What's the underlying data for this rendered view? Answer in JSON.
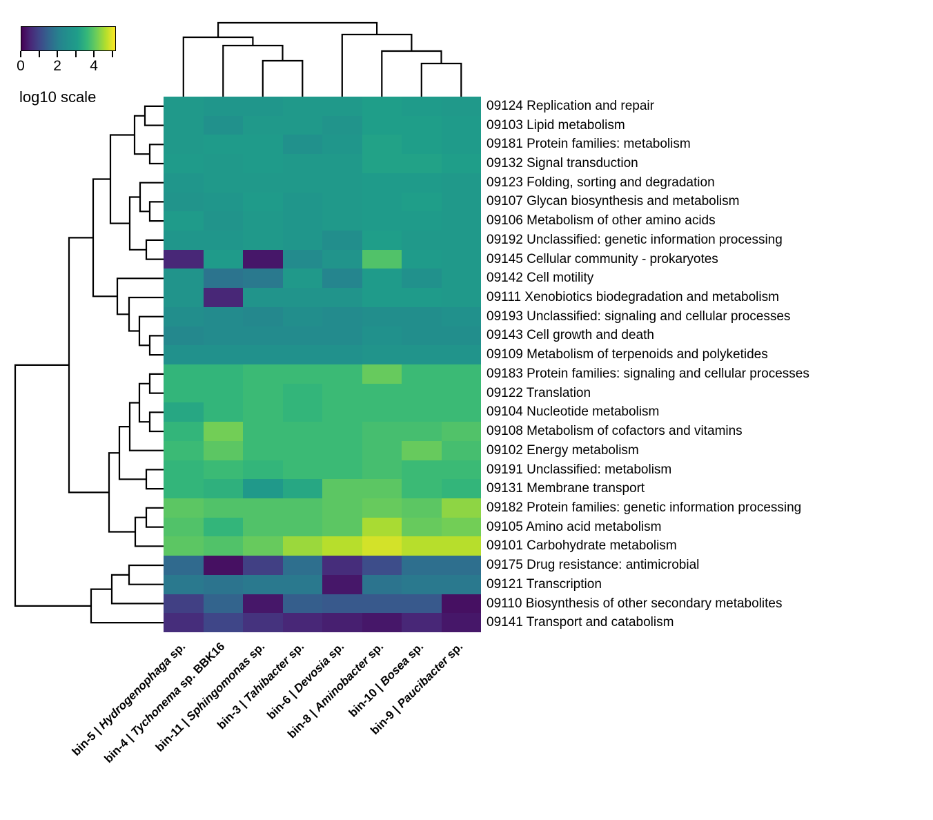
{
  "colors": {
    "background": "#ffffff",
    "line": "#000000",
    "viridis_stops": [
      "#440154",
      "#482878",
      "#3e4989",
      "#31688e",
      "#26828e",
      "#21918c",
      "#1f9e89",
      "#35b779",
      "#6dcd59",
      "#b4de2c",
      "#fde725"
    ]
  },
  "legend": {
    "title": "log10 scale",
    "vmin": 0,
    "vmax": 5.2,
    "ticks": [
      0,
      1,
      2,
      3,
      4,
      5
    ],
    "tick_labels": {
      "0": "0",
      "2": "2",
      "4": "4"
    }
  },
  "chart_data": {
    "type": "heatmap",
    "subtype": "clustermap",
    "colormap": "viridis",
    "scale": "log10",
    "vmin": 0,
    "vmax": 5.2,
    "legend_title": "log10 scale",
    "grid": false,
    "columns": [
      {
        "prefix": "bin-5 | ",
        "italic": "Hydrogenophaga",
        "suffix": " sp."
      },
      {
        "prefix": "bin-4 | ",
        "italic": "Tychonema",
        "suffix": " sp. BBK16"
      },
      {
        "prefix": "bin-11 | ",
        "italic": "Sphingomonas",
        "suffix": " sp."
      },
      {
        "prefix": "bin-3 | ",
        "italic": "Tahibacter",
        "suffix": " sp."
      },
      {
        "prefix": "bin-6 | ",
        "italic": "Devosia",
        "suffix": " sp."
      },
      {
        "prefix": "bin-8 | ",
        "italic": "Aminobacter",
        "suffix": " sp."
      },
      {
        "prefix": "bin-10 | ",
        "italic": "Bosea",
        "suffix": " sp."
      },
      {
        "prefix": "bin-9 | ",
        "italic": "Paucibacter",
        "suffix": " sp."
      }
    ],
    "rows": [
      "09124 Replication and repair",
      "09103 Lipid metabolism",
      "09181 Protein families: metabolism",
      "09132 Signal transduction",
      "09123 Folding, sorting and degradation",
      "09107 Glycan biosynthesis and metabolism",
      "09106 Metabolism of other amino acids",
      "09192 Unclassified: genetic information processing",
      "09145 Cellular community - prokaryotes",
      "09142 Cell motility",
      "09111 Xenobiotics biodegradation and metabolism",
      "09193 Unclassified: signaling and cellular processes",
      "09143 Cell growth and death",
      "09109 Metabolism of terpenoids and polyketides",
      "09183 Protein families: signaling and cellular processes",
      "09122 Translation",
      "09104 Nucleotide metabolism",
      "09108 Metabolism of cofactors and vitamins",
      "09102 Energy metabolism",
      "09191 Unclassified: metabolism",
      "09131 Membrane transport",
      "09182 Protein families: genetic information processing",
      "09105 Amino acid metabolism",
      "09101 Carbohydrate metabolism",
      "09175 Drug resistance: antimicrobial",
      "09121 Transcription",
      "09110 Biosynthesis of other secondary metabolites",
      "09141 Transport and catabolism"
    ],
    "values": [
      [
        2.9,
        2.8,
        2.8,
        2.9,
        2.9,
        3.1,
        3.0,
        2.9
      ],
      [
        2.9,
        2.6,
        2.9,
        2.9,
        2.7,
        3.1,
        3.1,
        3.0
      ],
      [
        2.9,
        3.0,
        3.0,
        2.6,
        2.8,
        3.2,
        3.1,
        3.0
      ],
      [
        3.0,
        2.9,
        3.0,
        2.9,
        2.9,
        3.2,
        3.2,
        3.1
      ],
      [
        2.8,
        2.9,
        2.9,
        2.9,
        2.9,
        3.0,
        3.0,
        2.9
      ],
      [
        2.7,
        2.8,
        3.0,
        2.8,
        2.9,
        3.0,
        3.1,
        2.9
      ],
      [
        3.0,
        2.7,
        2.9,
        2.8,
        2.9,
        3.0,
        3.0,
        2.9
      ],
      [
        2.8,
        2.8,
        2.9,
        2.8,
        2.5,
        3.1,
        2.9,
        2.9
      ],
      [
        0.5,
        3.0,
        0.3,
        2.4,
        2.7,
        3.9,
        3.0,
        2.9
      ],
      [
        2.7,
        1.8,
        1.9,
        2.9,
        2.2,
        3.0,
        2.6,
        2.9
      ],
      [
        2.7,
        0.5,
        2.7,
        2.7,
        2.7,
        3.0,
        3.0,
        2.9
      ],
      [
        2.5,
        2.4,
        2.3,
        2.5,
        2.4,
        2.5,
        2.5,
        2.6
      ],
      [
        2.3,
        2.4,
        2.4,
        2.4,
        2.4,
        2.6,
        2.5,
        2.5
      ],
      [
        2.6,
        2.6,
        2.6,
        2.6,
        2.6,
        2.7,
        2.7,
        2.7
      ],
      [
        3.6,
        3.6,
        3.7,
        3.7,
        3.7,
        4.1,
        3.7,
        3.7
      ],
      [
        3.6,
        3.6,
        3.7,
        3.6,
        3.7,
        3.7,
        3.7,
        3.7
      ],
      [
        3.3,
        3.6,
        3.7,
        3.6,
        3.7,
        3.7,
        3.7,
        3.7
      ],
      [
        3.6,
        4.2,
        3.7,
        3.7,
        3.7,
        3.8,
        3.8,
        3.9
      ],
      [
        3.7,
        4.0,
        3.7,
        3.7,
        3.7,
        3.8,
        4.1,
        3.8
      ],
      [
        3.6,
        3.7,
        3.6,
        3.7,
        3.7,
        3.8,
        3.7,
        3.7
      ],
      [
        3.6,
        3.5,
        2.9,
        3.3,
        4.0,
        4.0,
        3.7,
        3.6
      ],
      [
        4.0,
        3.9,
        3.9,
        3.9,
        4.0,
        4.1,
        4.0,
        4.4
      ],
      [
        3.9,
        3.6,
        3.9,
        3.9,
        4.0,
        4.6,
        4.1,
        4.2
      ],
      [
        4.0,
        3.9,
        4.1,
        4.5,
        4.7,
        4.9,
        4.7,
        4.7
      ],
      [
        1.6,
        0.2,
        0.9,
        1.7,
        0.6,
        1.1,
        1.7,
        1.7
      ],
      [
        1.9,
        1.8,
        1.9,
        1.9,
        0.3,
        1.8,
        1.9,
        1.9
      ],
      [
        0.9,
        1.5,
        0.3,
        1.4,
        1.3,
        1.3,
        1.3,
        0.2
      ],
      [
        0.6,
        1.0,
        0.7,
        0.5,
        0.4,
        0.3,
        0.5,
        0.3
      ]
    ],
    "col_dendrogram": "((bin-5,(bin-4,(bin-11,bin-3))),(bin-6,(bin-8,(bin-10,bin-9))))",
    "row_dendrogram": "(((((09124,09103),(09181,09132)),((09123,(09107,09106)),(09192,09145))),(09142,(09111,(09193,(09143,09109))))),((((((09183,09122),(09104,09108)),09102),(09191,09131)),((09182,09105),09101)))),(((09175,09121),09110),09141))"
  }
}
